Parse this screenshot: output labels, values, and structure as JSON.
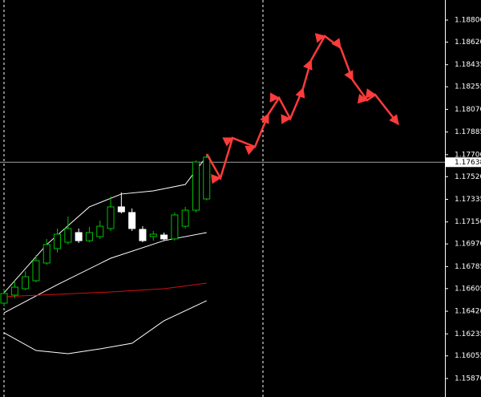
{
  "chart_data": {
    "type": "candlestick",
    "ylim": [
      1.15719,
      1.18964
    ],
    "xlim": [
      -0.38,
      41.35
    ],
    "yticks": [
      {
        "value": 1.188,
        "label": "1.18800"
      },
      {
        "value": 1.1862,
        "label": "1.18620"
      },
      1.18435,
      1.18255,
      {
        "value": 1.1807,
        "label": "1.18070"
      },
      1.17885,
      {
        "value": 1.177,
        "label": "1.17700"
      },
      {
        "value": 1.1752,
        "label": "1.17520"
      },
      1.17335,
      {
        "value": 1.1715,
        "label": "1.17150"
      },
      {
        "value": 1.1697,
        "label": "1.16970"
      },
      1.16785,
      1.16605,
      {
        "value": 1.1642,
        "label": "1.16420"
      },
      1.16235,
      1.16055,
      {
        "value": 1.1587,
        "label": "1.15870"
      }
    ],
    "current_price": {
      "value": 1.17638,
      "label": "1.17638"
    },
    "up_color": "#00c000",
    "down_color": "#ffffff",
    "candles": [
      {
        "open": 1.16486,
        "high": 1.16604,
        "low": 1.1646,
        "close": 1.16565
      },
      {
        "open": 1.16552,
        "high": 1.1667,
        "low": 1.16525,
        "close": 1.16617
      },
      {
        "open": 1.16604,
        "high": 1.16748,
        "low": 1.16591,
        "close": 1.16702
      },
      {
        "open": 1.1667,
        "high": 1.16879,
        "low": 1.16657,
        "close": 1.16834
      },
      {
        "open": 1.16814,
        "high": 1.17011,
        "low": 1.16801,
        "close": 1.16965
      },
      {
        "open": 1.16932,
        "high": 1.17096,
        "low": 1.16899,
        "close": 1.1705
      },
      {
        "open": 1.16984,
        "high": 1.17194,
        "low": 1.16965,
        "close": 1.17096
      },
      {
        "open": 1.17063,
        "high": 1.17096,
        "low": 1.16978,
        "close": 1.16997
      },
      {
        "open": 1.16997,
        "high": 1.17109,
        "low": 1.16984,
        "close": 1.17063
      },
      {
        "open": 1.1703,
        "high": 1.17161,
        "low": 1.17011,
        "close": 1.17115
      },
      {
        "open": 1.17096,
        "high": 1.17358,
        "low": 1.17076,
        "close": 1.17273
      },
      {
        "open": 1.17273,
        "high": 1.17391,
        "low": 1.1722,
        "close": 1.17233
      },
      {
        "open": 1.17227,
        "high": 1.1726,
        "low": 1.17076,
        "close": 1.17096
      },
      {
        "open": 1.17089,
        "high": 1.17115,
        "low": 1.16984,
        "close": 1.16997
      },
      {
        "open": 1.1703,
        "high": 1.17076,
        "low": 1.16997,
        "close": 1.1705
      },
      {
        "open": 1.17043,
        "high": 1.17063,
        "low": 1.16997,
        "close": 1.17011
      },
      {
        "open": 1.17011,
        "high": 1.17227,
        "low": 1.16997,
        "close": 1.17207
      },
      {
        "open": 1.17115,
        "high": 1.17273,
        "low": 1.17096,
        "close": 1.17246
      },
      {
        "open": 1.17246,
        "high": 1.17653,
        "low": 1.17227,
        "close": 1.1764
      },
      {
        "open": 1.17338,
        "high": 1.17705,
        "low": 1.17325,
        "close": 1.17679
      }
    ],
    "lines": [
      {
        "color": "#ffffff",
        "x": [
          0,
          4,
          8,
          11,
          14,
          17,
          19
        ],
        "values": [
          1.16571,
          1.16965,
          1.17273,
          1.17378,
          1.17404,
          1.17456,
          1.17686
        ]
      },
      {
        "color": "#ffffff",
        "x": [
          0,
          5,
          10,
          15,
          19
        ],
        "values": [
          1.16407,
          1.16637,
          1.16853,
          1.16997,
          1.17063
        ]
      },
      {
        "color": "#ffffff",
        "x": [
          0,
          3,
          6,
          9,
          12,
          15,
          19
        ],
        "values": [
          1.16244,
          1.16099,
          1.16073,
          1.16112,
          1.16158,
          1.16342,
          1.16506
        ]
      },
      {
        "color": "#d01010",
        "x": [
          0,
          5,
          10,
          15,
          19
        ],
        "values": [
          1.16539,
          1.16558,
          1.16578,
          1.16604,
          1.1665
        ]
      }
    ],
    "forecast": {
      "color": "#ff3b3b",
      "x": [
        19.02,
        20.3,
        21.43,
        23.53,
        24.81,
        25.79,
        26.84,
        28.05,
        28.8,
        30.08,
        31.58,
        32.71,
        34.06,
        34.81,
        36.99
      ],
      "values": [
        1.17705,
        1.17509,
        1.17836,
        1.17764,
        1.18033,
        1.18164,
        1.17994,
        1.18243,
        1.18472,
        1.18669,
        1.18571,
        1.18308,
        1.18145,
        1.1819,
        1.17948
      ]
    }
  }
}
